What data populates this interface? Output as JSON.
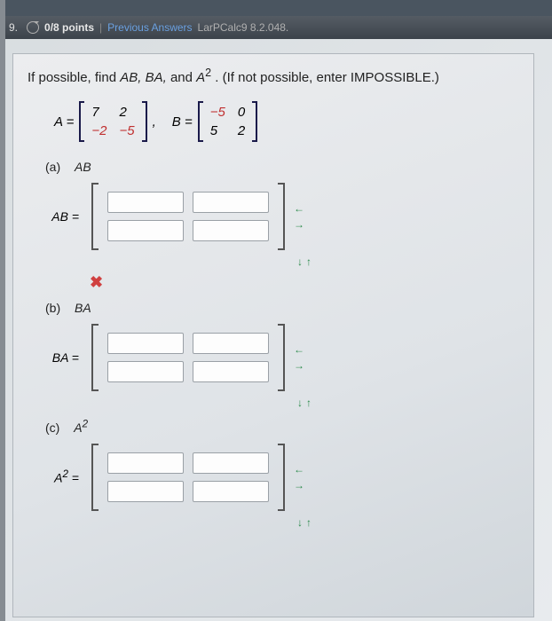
{
  "toolbar": {
    "qnum": "9.",
    "points": "0/8 points",
    "previous": "Previous Answers",
    "reference": "LarPCalc9 8.2.048."
  },
  "question": {
    "pre": "If possible, find ",
    "terms": "AB, BA,",
    "and": " and ",
    "a2": "A",
    "sup": "2",
    "post": ".  (If not possible, enter IMPOSSIBLE.)"
  },
  "matA": {
    "label": "A =",
    "r1c1": "7",
    "r1c2": "2",
    "r2c1": "−2",
    "r2c2": "−5"
  },
  "matB": {
    "label": "B =",
    "r1c1": "−5",
    "r1c2": "0",
    "r2c1": "5",
    "r2c2": "2"
  },
  "parts": {
    "a": {
      "letter": "(a)",
      "name": "AB",
      "answer_label": "AB ="
    },
    "b": {
      "letter": "(b)",
      "name": "BA",
      "answer_label": "BA ="
    },
    "c": {
      "letter": "(c)",
      "name": "A",
      "sup": "2",
      "answer_label": "A",
      "answer_sup": "2",
      "answer_eq": " ="
    }
  },
  "arrows": {
    "left": "←",
    "right": "→",
    "down": "↓",
    "up": "↑"
  },
  "wrong_icon": "✖",
  "comma": ","
}
